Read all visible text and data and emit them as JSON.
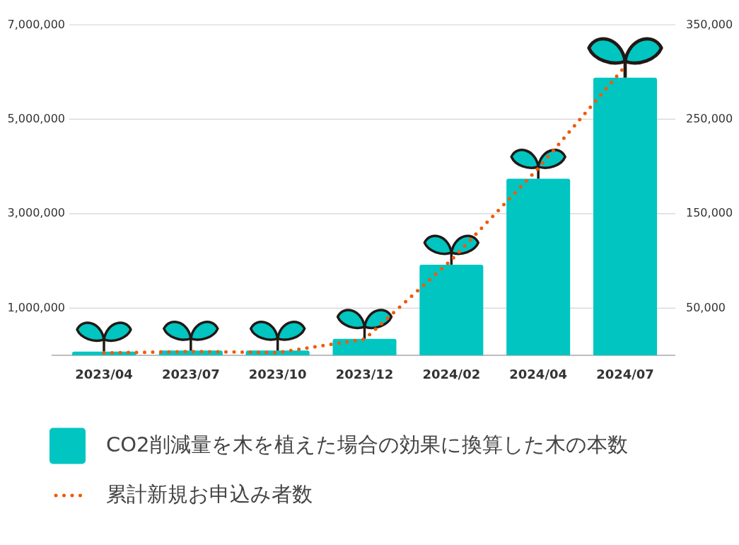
{
  "chart_data": {
    "type": "bar",
    "categories": [
      "2023/04",
      "2023/07",
      "2023/10",
      "2023/12",
      "2024/02",
      "2024/04",
      "2024/07"
    ],
    "series": [
      {
        "name": "CO2削減量を木を植えた場合の効果に換算した木の本数",
        "color": "#00c5c1",
        "values": [
          80000,
          100000,
          100000,
          350000,
          1920000,
          3740000,
          5880000
        ]
      },
      {
        "name": "累計新規お申込み者数",
        "type": "line",
        "axis": "y2",
        "color": "#f05a0a",
        "line_style": "dotted",
        "values": [
          2500,
          4000,
          3000,
          17000,
          101000,
          198000,
          306000
        ]
      }
    ],
    "ylim": [
      0,
      7000000
    ],
    "yticks": [
      {
        "value": 1000000,
        "label": "1,000,000"
      },
      {
        "value": 3000000,
        "label": "3,000,000"
      },
      {
        "value": 5000000,
        "label": "5,000,000"
      },
      {
        "value": 7000000,
        "label": "7,000,000"
      }
    ],
    "y2lim": [
      0,
      350000
    ],
    "y2ticks": [
      {
        "value": 50000,
        "label": "50,000"
      },
      {
        "value": 150000,
        "label": "150,000"
      },
      {
        "value": 250000,
        "label": "250,000"
      },
      {
        "value": 350000,
        "label": "350,000"
      }
    ],
    "grid": "y",
    "legend": "bottom"
  }
}
